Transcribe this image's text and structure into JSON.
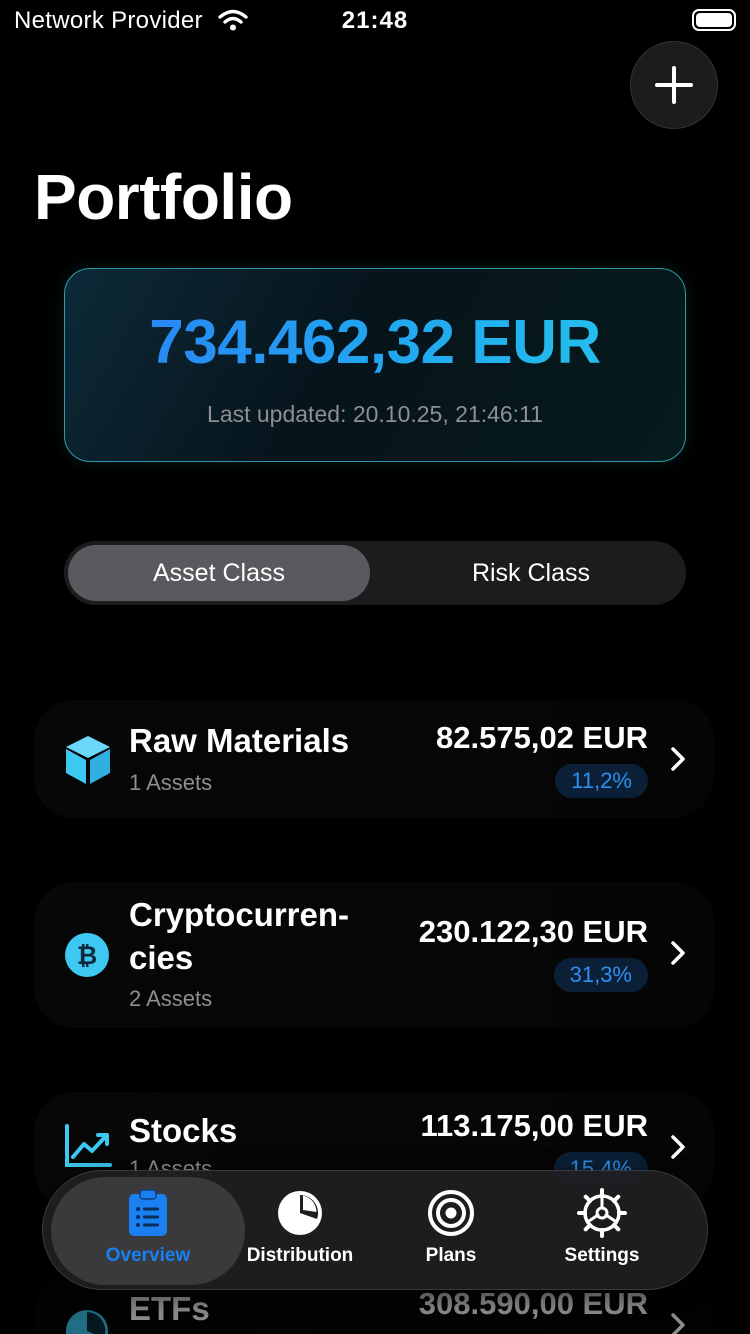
{
  "status_bar": {
    "carrier": "Network Provider",
    "time": "21:48"
  },
  "header": {
    "title": "Portfolio",
    "add_icon": "plus-icon"
  },
  "total": {
    "value": "734.462,32 EUR",
    "last_updated": "Last updated: 20.10.25, 21:46:11"
  },
  "segmented_control": {
    "options": [
      "Asset Class",
      "Risk Class"
    ],
    "selected": "Asset Class"
  },
  "asset_classes": [
    {
      "name": "Raw Materials",
      "subtitle": "1 Assets",
      "value": "82.575,02 EUR",
      "share": "11,2%",
      "icon": "cube-icon"
    },
    {
      "name_line1": "Cryptocurren-",
      "name_line2": "cies",
      "subtitle": "2 Assets",
      "value": "230.122,30 EUR",
      "share": "31,3%",
      "icon": "bitcoin-icon"
    },
    {
      "name": "Stocks",
      "subtitle": "1 Assets",
      "value": "113.175,00 EUR",
      "share": "15,4%",
      "icon": "chart-up-icon"
    },
    {
      "name": "ETFs",
      "value": "308.590,00 EUR",
      "icon": "pie-chart-icon"
    }
  ],
  "tab_bar": {
    "tabs": [
      {
        "label": "Overview",
        "icon": "clipboard-icon",
        "active": true
      },
      {
        "label": "Distribution",
        "icon": "pie-chart-icon",
        "active": false
      },
      {
        "label": "Plans",
        "icon": "target-icon",
        "active": false
      },
      {
        "label": "Settings",
        "icon": "gear-icon",
        "active": false
      }
    ]
  },
  "colors": {
    "accent": "#1a7ff0",
    "card_border": "#2e9aa8",
    "icon_cyan": "#3cc8f0"
  }
}
